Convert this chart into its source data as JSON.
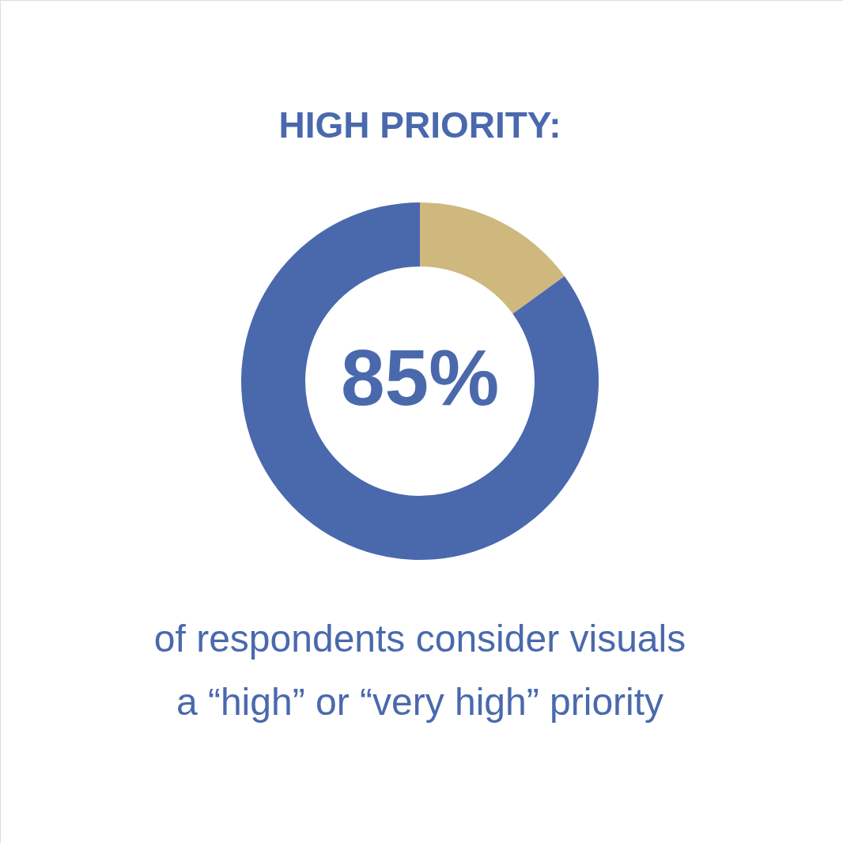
{
  "chart_data": {
    "type": "donut",
    "title": "HIGH PRIORITY:",
    "categories": [
      null,
      null
    ],
    "values": [
      15,
      85
    ],
    "colors": [
      "#cfb87e",
      "#4a69ad"
    ],
    "value_labels": [
      null,
      "85%"
    ],
    "annotations": [
      "of respondents consider visuals",
      "a “high” or “very high” priority"
    ]
  }
}
